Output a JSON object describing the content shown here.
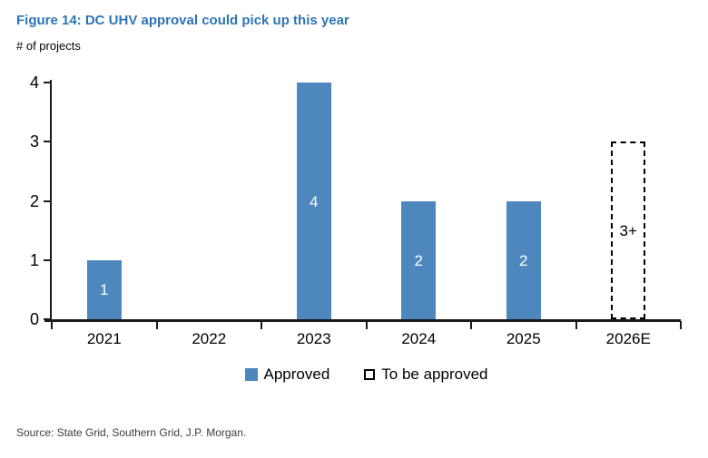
{
  "header": {
    "title": "Figure 14: DC UHV approval could pick up this year"
  },
  "chart_data": {
    "type": "bar",
    "title": "Figure 14: DC UHV approval could pick up this year",
    "subtitle": "# of projects",
    "categories": [
      "2021",
      "2022",
      "2023",
      "2024",
      "2025",
      "2026E"
    ],
    "series": [
      {
        "name": "Approved",
        "style": "solid",
        "values": [
          1,
          0,
          4,
          2,
          2,
          0
        ],
        "labels": [
          "1",
          "",
          "4",
          "2",
          "2",
          ""
        ]
      },
      {
        "name": "To be approved",
        "style": "dashed",
        "values": [
          0,
          0,
          0,
          0,
          0,
          3
        ],
        "labels": [
          "",
          "",
          "",
          "",
          "",
          "3+"
        ]
      }
    ],
    "ylim": [
      0,
      4
    ],
    "yticks": [
      0,
      1,
      2,
      3,
      4
    ],
    "grid": "off",
    "legend_position": "bottom-center",
    "colors": {
      "bar_fill": "#4e87bd",
      "dashed_outline": "#000000",
      "title_text": "#2e74b5",
      "axis": "#1a1a1a"
    }
  },
  "footer": {
    "source": "Source: State Grid, Southern Grid, J.P. Morgan."
  }
}
